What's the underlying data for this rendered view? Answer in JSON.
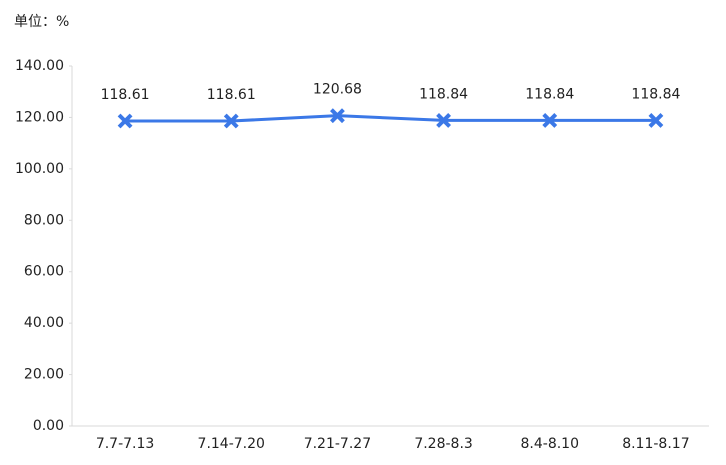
{
  "chart_data": {
    "type": "line",
    "unit_label": "单位：%",
    "categories": [
      "7.7-7.13",
      "7.14-7.20",
      "7.21-7.27",
      "7.28-8.3",
      "8.4-8.10",
      "8.11-8.17"
    ],
    "values": [
      118.61,
      118.61,
      120.68,
      118.84,
      118.84,
      118.84
    ],
    "color": "#3b78e7",
    "ylim": [
      0,
      140
    ],
    "yticks": [
      {
        "value": 0,
        "label": "0.00"
      },
      {
        "value": 20,
        "label": "20.00"
      },
      {
        "value": 40,
        "label": "40.00"
      },
      {
        "value": 60,
        "label": "60.00"
      },
      {
        "value": 80,
        "label": "80.00"
      },
      {
        "value": 100,
        "label": "100.00"
      },
      {
        "value": 120,
        "label": "120.00"
      },
      {
        "value": 140,
        "label": "140.00"
      }
    ],
    "grid": false
  }
}
